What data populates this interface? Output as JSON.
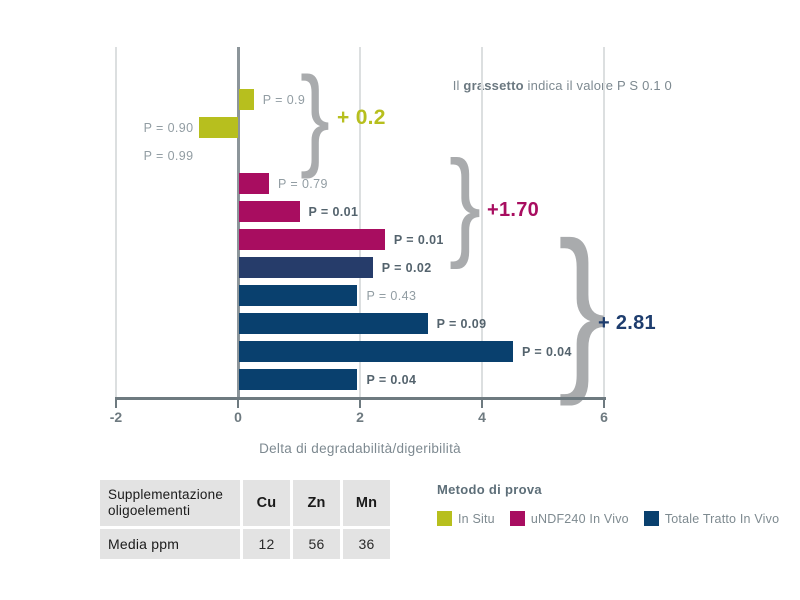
{
  "note": {
    "pre": "Il ",
    "bold": "grassetto",
    "post": " indica il valore P  S  0.1 0"
  },
  "chart_data": {
    "type": "bar",
    "orientation": "horizontal",
    "title": "",
    "xlabel": "Delta di degradabilità/digeribilità",
    "xlim": [
      -2,
      6
    ],
    "x_ticks": [
      "-2",
      "0",
      "2",
      "4",
      "6"
    ],
    "grid": true,
    "series": [
      {
        "name": "In Situ",
        "color": "#b7bf1e"
      },
      {
        "name": "uNDF240 In Vivo",
        "color": "#a80d60"
      },
      {
        "name": "Totale Tratto In Vivo",
        "color": "#09406e"
      }
    ],
    "bars": [
      {
        "series": 0,
        "value": 0.25,
        "p_label": "P = 0.9",
        "bold": false
      },
      {
        "series": 0,
        "value": -0.65,
        "p_label": "P = 0.90",
        "bold": false
      },
      {
        "series": 0,
        "value": 0,
        "p_label": "P = 0.99",
        "bold": false
      },
      {
        "series": 1,
        "value": 0.5,
        "p_label": "P = 0.79",
        "bold": false
      },
      {
        "series": 1,
        "value": 1.0,
        "p_label": "P = 0.01",
        "bold": true
      },
      {
        "series": 1,
        "value": 2.4,
        "p_label": "P = 0.01",
        "bold": true
      },
      {
        "series": 2,
        "value": 2.2,
        "p_label": "P = 0.02",
        "bold": true,
        "color": "#263c6a"
      },
      {
        "series": 2,
        "value": 1.95,
        "p_label": "P = 0.43",
        "bold": false
      },
      {
        "series": 2,
        "value": 3.1,
        "p_label": "P = 0.09",
        "bold": true
      },
      {
        "series": 2,
        "value": 4.5,
        "p_label": "P = 0.04",
        "bold": true
      },
      {
        "series": 2,
        "value": 1.95,
        "p_label": "P = 0.04",
        "bold": true
      }
    ],
    "group_annotations": [
      {
        "text": "+ 0.2",
        "color": "#b7bf1e"
      },
      {
        "text": "+1.70",
        "color": "#a80d60"
      },
      {
        "text": "+ 2.81",
        "color": "#1e3d6e"
      }
    ]
  },
  "legend": {
    "title": "Metodo di prova"
  },
  "table": {
    "header": [
      "Supplementazione oligoelementi",
      "Cu",
      "Zn",
      "Mn"
    ],
    "row": {
      "label": "Media ppm",
      "values": [
        "12",
        "56",
        "36"
      ]
    }
  },
  "colors": {
    "axis": "#6e7a80",
    "zero_line": "#8c959a",
    "gridline": "#dcdfe0",
    "brace": "#a9abad",
    "p_label_normal": "#929da3",
    "p_label_bold": "#54636d",
    "note_text": "#7d8990",
    "table_bg": "#e3e3e3"
  }
}
